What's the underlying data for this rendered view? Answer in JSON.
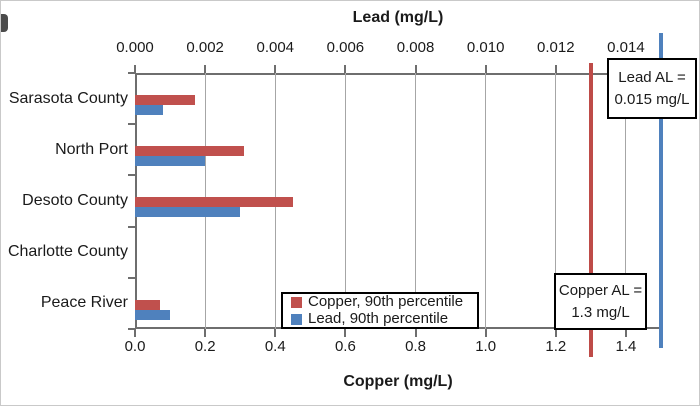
{
  "chart_data": {
    "type": "bar",
    "orientation": "horizontal",
    "title": "",
    "categories": [
      "Sarasota County",
      "North Port",
      "Desoto County",
      "Charlotte County",
      "Peace River"
    ],
    "series": [
      {
        "name": "Copper, 90th percentile",
        "axis": "bottom",
        "color": "#c0504d",
        "values": [
          0.17,
          0.31,
          0.45,
          0,
          0.07
        ]
      },
      {
        "name": "Lead, 90th percentile",
        "axis": "top",
        "color": "#4f81bd",
        "values": [
          0.0008,
          0.002,
          0.003,
          0,
          0.001
        ]
      }
    ],
    "axes": {
      "top": {
        "label": "Lead (mg/L)",
        "tick_labels": [
          "0.000",
          "0.002",
          "0.004",
          "0.006",
          "0.008",
          "0.010",
          "0.012",
          "0.014"
        ],
        "tick_values": [
          0.0,
          0.002,
          0.004,
          0.006,
          0.008,
          0.01,
          0.012,
          0.014
        ],
        "range": [
          0,
          0.015
        ]
      },
      "bottom": {
        "label": "Copper (mg/L)",
        "tick_labels": [
          "0.0",
          "0.2",
          "0.4",
          "0.6",
          "0.8",
          "1.0",
          "1.2",
          "1.4"
        ],
        "tick_values": [
          0.0,
          0.2,
          0.4,
          0.6,
          0.8,
          1.0,
          1.2,
          1.4
        ],
        "range": [
          0,
          1.5
        ]
      }
    },
    "grid": "vertical",
    "legend_position": "bottom-center-inside",
    "reference_lines": [
      {
        "name": "copper-action-level",
        "axis": "bottom",
        "value": 1.3,
        "color": "#be4b48"
      },
      {
        "name": "lead-action-level",
        "axis": "top",
        "value": 0.015,
        "color": "#4f81bd"
      }
    ],
    "annotations": {
      "lead_al": {
        "line1": "Lead AL =",
        "line2": "0.015 mg/L"
      },
      "copper_al": {
        "line1": "Copper AL =",
        "line2": "1.3  mg/L"
      }
    },
    "colors": {
      "copper_bar": "#c0504d",
      "lead_bar": "#4f81bd",
      "gridline": "#a6a6a6",
      "axis_line": "#6e6e6e",
      "text": "#1a1a1a"
    }
  }
}
